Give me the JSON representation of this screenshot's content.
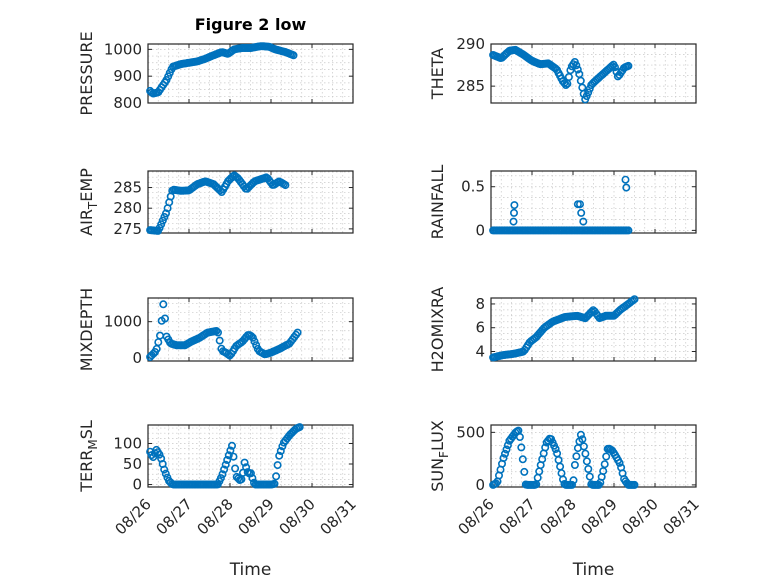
{
  "chart_data": [
    {
      "type": "scatter",
      "title": "Figure 2 low",
      "ylabel": "PRESSURE",
      "xlabel": "",
      "ylim": [
        800,
        1020
      ],
      "yticks": [
        800,
        900,
        1000
      ],
      "xlim": [
        "08/26",
        "08/31"
      ],
      "xticks": [
        "08/26",
        "08/27",
        "08/28",
        "08/29",
        "08/30",
        "08/31"
      ],
      "grid": true,
      "marker": "circle",
      "color": "#0072BD",
      "anchors": [
        [
          0.05,
          845
        ],
        [
          0.12,
          835
        ],
        [
          0.25,
          840
        ],
        [
          0.45,
          885
        ],
        [
          0.6,
          935
        ],
        [
          0.8,
          945
        ],
        [
          1.0,
          950
        ],
        [
          1.2,
          955
        ],
        [
          1.4,
          965
        ],
        [
          1.6,
          978
        ],
        [
          1.8,
          990
        ],
        [
          1.95,
          983
        ],
        [
          2.1,
          1000
        ],
        [
          2.3,
          1005
        ],
        [
          2.5,
          1005
        ],
        [
          2.75,
          1012
        ],
        [
          2.95,
          1010
        ],
        [
          3.1,
          1000
        ],
        [
          3.35,
          990
        ],
        [
          3.55,
          978
        ]
      ],
      "n": 88
    },
    {
      "type": "scatter",
      "ylabel": "THETA",
      "xlabel": "",
      "ylim": [
        283,
        290
      ],
      "yticks": [
        285,
        290
      ],
      "xlim": [
        "08/26",
        "08/31"
      ],
      "xticks": [
        "08/26",
        "08/27",
        "08/28",
        "08/29",
        "08/30",
        "08/31"
      ],
      "grid": true,
      "marker": "circle",
      "color": "#0072BD",
      "anchors": [
        [
          0.05,
          288.7
        ],
        [
          0.25,
          288.3
        ],
        [
          0.45,
          289.2
        ],
        [
          0.6,
          289.3
        ],
        [
          0.8,
          288.7
        ],
        [
          1.0,
          288.0
        ],
        [
          1.2,
          287.6
        ],
        [
          1.4,
          287.7
        ],
        [
          1.6,
          287.0
        ],
        [
          1.75,
          285.6
        ],
        [
          1.85,
          285.0
        ],
        [
          1.95,
          287.2
        ],
        [
          2.05,
          287.9
        ],
        [
          2.15,
          286.5
        ],
        [
          2.25,
          284.3
        ],
        [
          2.3,
          283.4
        ],
        [
          2.45,
          285.2
        ],
        [
          2.7,
          286.3
        ],
        [
          3.0,
          287.6
        ],
        [
          3.1,
          286.1
        ],
        [
          3.25,
          287.2
        ],
        [
          3.35,
          287.4
        ]
      ],
      "n": 92
    },
    {
      "type": "scatter",
      "ylabel": "AIR_TEMP",
      "ylabel_display": {
        "main": "AIR",
        "sub": "T",
        "rest": "EMP"
      },
      "xlabel": "",
      "ylim": [
        274,
        289
      ],
      "yticks": [
        275,
        280,
        285
      ],
      "xlim": [
        "08/26",
        "08/31"
      ],
      "xticks": [
        "08/26",
        "08/27",
        "08/28",
        "08/29",
        "08/30",
        "08/31"
      ],
      "grid": true,
      "marker": "circle",
      "color": "#0072BD",
      "anchors": [
        [
          0.05,
          274.7
        ],
        [
          0.25,
          274.5
        ],
        [
          0.45,
          279.0
        ],
        [
          0.6,
          284.5
        ],
        [
          0.8,
          284.2
        ],
        [
          1.0,
          284.3
        ],
        [
          1.2,
          285.8
        ],
        [
          1.4,
          286.5
        ],
        [
          1.6,
          285.8
        ],
        [
          1.8,
          283.9
        ],
        [
          1.95,
          286.5
        ],
        [
          2.1,
          288.0
        ],
        [
          2.2,
          287.2
        ],
        [
          2.4,
          284.5
        ],
        [
          2.6,
          286.5
        ],
        [
          2.9,
          287.5
        ],
        [
          3.05,
          285.5
        ],
        [
          3.2,
          286.5
        ],
        [
          3.35,
          285.6
        ]
      ],
      "n": 86
    },
    {
      "type": "scatter",
      "ylabel": "RAINFALL",
      "xlabel": "",
      "ylim": [
        -0.03,
        0.68
      ],
      "yticks": [
        0,
        0.5
      ],
      "ytick_labels": [
        "0",
        "0.5"
      ],
      "xlim": [
        "08/26",
        "08/31"
      ],
      "xticks": [
        "08/26",
        "08/27",
        "08/28",
        "08/29",
        "08/30",
        "08/31"
      ],
      "grid": true,
      "marker": "circle",
      "color": "#0072BD",
      "baseline": 0,
      "baseline_range": [
        0.05,
        3.35
      ],
      "baseline_n": 84,
      "spikes": [
        [
          0.55,
          0.1
        ],
        [
          0.56,
          0.2
        ],
        [
          0.57,
          0.29
        ],
        [
          2.12,
          0.3
        ],
        [
          2.17,
          0.3
        ],
        [
          2.2,
          0.2
        ],
        [
          2.25,
          0.1
        ],
        [
          3.28,
          0.58
        ],
        [
          3.3,
          0.49
        ]
      ]
    },
    {
      "type": "scatter",
      "ylabel": "MIXDEPTH",
      "xlabel": "",
      "ylim": [
        -80,
        1650
      ],
      "yticks": [
        0,
        1000
      ],
      "xlim": [
        "08/26",
        "08/31"
      ],
      "xticks": [
        "08/26",
        "08/27",
        "08/28",
        "08/29",
        "08/30",
        "08/31"
      ],
      "grid": true,
      "marker": "circle",
      "color": "#0072BD",
      "anchors": [
        [
          0.05,
          30
        ],
        [
          0.2,
          200
        ],
        [
          0.3,
          650
        ],
        [
          0.38,
          1550
        ],
        [
          0.45,
          600
        ],
        [
          0.55,
          400
        ],
        [
          0.7,
          350
        ],
        [
          0.9,
          350
        ],
        [
          1.05,
          450
        ],
        [
          1.25,
          550
        ],
        [
          1.45,
          700
        ],
        [
          1.7,
          750
        ],
        [
          1.8,
          200
        ],
        [
          1.9,
          150
        ],
        [
          2.0,
          60
        ],
        [
          2.15,
          330
        ],
        [
          2.3,
          450
        ],
        [
          2.45,
          650
        ],
        [
          2.55,
          580
        ],
        [
          2.7,
          200
        ],
        [
          2.85,
          100
        ],
        [
          3.0,
          150
        ],
        [
          3.2,
          250
        ],
        [
          3.45,
          400
        ],
        [
          3.65,
          700
        ]
      ],
      "n": 90
    },
    {
      "type": "scatter",
      "ylabel": "H2OMIXRA",
      "xlabel": "",
      "ylim": [
        3.2,
        8.5
      ],
      "yticks": [
        4,
        6,
        8
      ],
      "xlim": [
        "08/26",
        "08/31"
      ],
      "xticks": [
        "08/26",
        "08/27",
        "08/28",
        "08/29",
        "08/30",
        "08/31"
      ],
      "grid": true,
      "marker": "circle",
      "color": "#0072BD",
      "anchors": [
        [
          0.05,
          3.5
        ],
        [
          0.3,
          3.7
        ],
        [
          0.55,
          3.8
        ],
        [
          0.8,
          4.0
        ],
        [
          0.95,
          4.8
        ],
        [
          1.1,
          5.2
        ],
        [
          1.3,
          6.0
        ],
        [
          1.5,
          6.5
        ],
        [
          1.8,
          6.9
        ],
        [
          2.1,
          7.0
        ],
        [
          2.3,
          6.8
        ],
        [
          2.5,
          7.5
        ],
        [
          2.65,
          6.8
        ],
        [
          2.8,
          7.0
        ],
        [
          3.0,
          7.0
        ],
        [
          3.15,
          7.5
        ],
        [
          3.35,
          8.0
        ],
        [
          3.5,
          8.4
        ]
      ],
      "n": 90
    },
    {
      "type": "scatter",
      "ylabel": "TERR_MSL",
      "ylabel_display": {
        "main": "TERR",
        "sub": "M",
        "rest": "SL"
      },
      "xlabel": "Time",
      "ylim": [
        -6,
        145
      ],
      "yticks": [
        0,
        50,
        100
      ],
      "xlim": [
        "08/26",
        "08/31"
      ],
      "xticks": [
        "08/26",
        "08/27",
        "08/28",
        "08/29",
        "08/30",
        "08/31"
      ],
      "grid": true,
      "marker": "circle",
      "color": "#0072BD",
      "anchors": [
        [
          0.05,
          80
        ],
        [
          0.12,
          65
        ],
        [
          0.2,
          85
        ],
        [
          0.3,
          70
        ],
        [
          0.4,
          35
        ],
        [
          0.5,
          10
        ],
        [
          0.6,
          0
        ],
        [
          1.0,
          0
        ],
        [
          1.5,
          0
        ],
        [
          1.7,
          0
        ],
        [
          1.8,
          20
        ],
        [
          1.9,
          50
        ],
        [
          2.0,
          80
        ],
        [
          2.05,
          95
        ],
        [
          2.15,
          20
        ],
        [
          2.25,
          10
        ],
        [
          2.3,
          15
        ],
        [
          2.35,
          55
        ],
        [
          2.45,
          25
        ],
        [
          2.5,
          30
        ],
        [
          2.6,
          0
        ],
        [
          3.0,
          0
        ],
        [
          3.1,
          2
        ],
        [
          3.15,
          40
        ],
        [
          3.2,
          70
        ],
        [
          3.3,
          100
        ],
        [
          3.45,
          120
        ],
        [
          3.6,
          135
        ],
        [
          3.7,
          140
        ]
      ],
      "n": 96
    },
    {
      "type": "scatter",
      "ylabel": "SUN_FLUX",
      "ylabel_display": {
        "main": "SUN",
        "sub": "F",
        "rest": "LUX"
      },
      "xlabel": "Time",
      "ylim": [
        -20,
        570
      ],
      "yticks": [
        0,
        500
      ],
      "xlim": [
        "08/26",
        "08/31"
      ],
      "xticks": [
        "08/26",
        "08/27",
        "08/28",
        "08/29",
        "08/30",
        "08/31"
      ],
      "grid": true,
      "marker": "circle",
      "color": "#0072BD",
      "anchors": [
        [
          0.05,
          0
        ],
        [
          0.15,
          20
        ],
        [
          0.3,
          250
        ],
        [
          0.45,
          420
        ],
        [
          0.6,
          500
        ],
        [
          0.68,
          520
        ],
        [
          0.75,
          330
        ],
        [
          0.85,
          0
        ],
        [
          1.1,
          0
        ],
        [
          1.2,
          170
        ],
        [
          1.35,
          400
        ],
        [
          1.45,
          450
        ],
        [
          1.6,
          320
        ],
        [
          1.75,
          60
        ],
        [
          1.8,
          0
        ],
        [
          2.0,
          0
        ],
        [
          2.05,
          200
        ],
        [
          2.12,
          350
        ],
        [
          2.2,
          490
        ],
        [
          2.3,
          300
        ],
        [
          2.4,
          100
        ],
        [
          2.45,
          0
        ],
        [
          2.65,
          0
        ],
        [
          2.75,
          150
        ],
        [
          2.85,
          350
        ],
        [
          2.95,
          330
        ],
        [
          3.05,
          270
        ],
        [
          3.15,
          200
        ],
        [
          3.25,
          50
        ],
        [
          3.35,
          0
        ],
        [
          3.5,
          0
        ]
      ],
      "n": 96
    }
  ]
}
